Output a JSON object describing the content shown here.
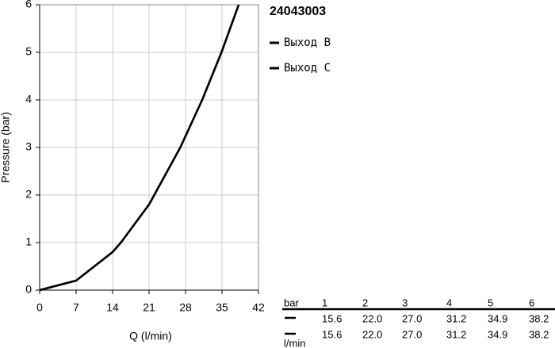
{
  "chart_data": {
    "type": "line",
    "title": "24043003",
    "x_label": "Q (l/min)",
    "y_label": "Pressure (bar)",
    "xlim": [
      0,
      42
    ],
    "xticks": [
      0,
      7,
      14,
      21,
      28,
      35,
      42
    ],
    "ylim": [
      0,
      6
    ],
    "yticks": [
      0,
      1,
      2,
      3,
      4,
      5,
      6
    ],
    "grid": true,
    "series": [
      {
        "name": "Выход B",
        "color": "#000000",
        "x": [
          0,
          7,
          14,
          15.6,
          21,
          22.0,
          27.0,
          31.2,
          34.9,
          38.2
        ],
        "values": [
          0,
          0.2,
          0.8,
          1,
          1.8,
          2,
          3,
          4,
          5,
          6
        ]
      },
      {
        "name": "Выход C",
        "color": "#000000",
        "x": [
          0,
          7,
          14,
          15.6,
          21,
          22.0,
          27.0,
          31.2,
          34.9,
          38.2
        ],
        "values": [
          0,
          0.2,
          0.8,
          1,
          1.8,
          2,
          3,
          4,
          5,
          6
        ]
      }
    ]
  },
  "table": {
    "header": [
      "bar",
      "1",
      "2",
      "3",
      "4",
      "5",
      "6"
    ],
    "rows": [
      [
        "15.6",
        "22.0",
        "27.0",
        "31.2",
        "34.9",
        "38.2"
      ],
      [
        "15.6",
        "22.0",
        "27.0",
        "31.2",
        "34.9",
        "38.2"
      ]
    ],
    "unit": "l/min"
  }
}
